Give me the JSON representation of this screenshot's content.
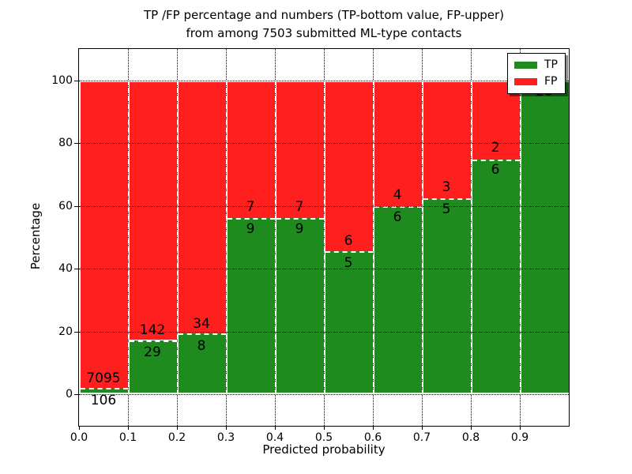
{
  "chart_data": {
    "type": "bar",
    "stacking": "percent-stacked",
    "title_lines": [
      "TP /FP percentage and numbers (TP-bottom value, FP-upper)",
      "from among 7503 submitted ML-type contacts"
    ],
    "xlabel": "Predicted probability",
    "ylabel": "Percentage",
    "x_ticks": [
      "0.0",
      "0.1",
      "0.2",
      "0.3",
      "0.4",
      "0.5",
      "0.6",
      "0.7",
      "0.8",
      "0.9"
    ],
    "y_ticks": [
      0,
      20,
      40,
      60,
      80,
      100
    ],
    "xlim": [
      0.0,
      1.0
    ],
    "ylim": [
      -10,
      110
    ],
    "grid": "dotted",
    "colors": {
      "tp": "#1f8b1f",
      "fp": "#ff1f1f",
      "bar_edge": "#ffffff",
      "text": "#000000"
    },
    "legend": {
      "position": "upper-right",
      "entries": [
        {
          "label": "TP",
          "color_key": "tp"
        },
        {
          "label": "FP",
          "color_key": "fp"
        }
      ]
    },
    "bars": [
      {
        "x0": 0.0,
        "x1": 0.1,
        "tp": 106,
        "fp": 7095,
        "tp_pct": 1.47
      },
      {
        "x0": 0.1,
        "x1": 0.2,
        "tp": 29,
        "fp": 142,
        "tp_pct": 16.96
      },
      {
        "x0": 0.2,
        "x1": 0.3,
        "tp": 8,
        "fp": 34,
        "tp_pct": 19.05
      },
      {
        "x0": 0.3,
        "x1": 0.4,
        "tp": 9,
        "fp": 7,
        "tp_pct": 56.25
      },
      {
        "x0": 0.4,
        "x1": 0.5,
        "tp": 9,
        "fp": 7,
        "tp_pct": 56.25
      },
      {
        "x0": 0.5,
        "x1": 0.6,
        "tp": 5,
        "fp": 6,
        "tp_pct": 45.45
      },
      {
        "x0": 0.6,
        "x1": 0.7,
        "tp": 6,
        "fp": 4,
        "tp_pct": 60.0
      },
      {
        "x0": 0.7,
        "x1": 0.8,
        "tp": 5,
        "fp": 3,
        "tp_pct": 62.5
      },
      {
        "x0": 0.8,
        "x1": 0.9,
        "tp": 6,
        "fp": 2,
        "tp_pct": 75.0
      },
      {
        "x0": 0.9,
        "x1": 1.0,
        "tp": 20,
        "fp": 0,
        "tp_pct": 100.0
      }
    ]
  }
}
